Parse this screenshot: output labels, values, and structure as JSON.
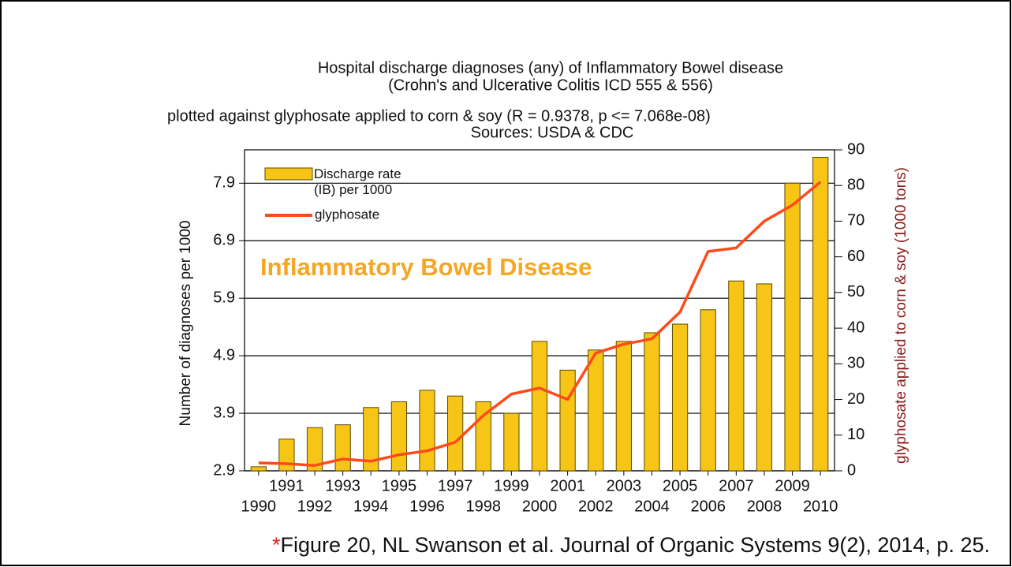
{
  "chart_data": {
    "type": "bar_line",
    "title": [
      "Hospital discharge diagnoses (any) of Inflammatory Bowel disease",
      "(Crohn's and Ulcerative Colitis  ICD 555 & 556)"
    ],
    "subtitle": [
      "plotted against glyphosate applied to corn & soy (R = 0.9378, p <= 7.068e-08)",
      "Sources: USDA & CDC"
    ],
    "ylabel": "Number of diagnoses per 1000",
    "y2label": "glyphosate applied to corn & soy (1000 tons)",
    "annotation": "Inflammatory Bowel Disease",
    "source_marker": "*",
    "source": "Figure 20, NL Swanson et al. Journal of Organic Systems 9(2), 2014, p. 25.",
    "categories": [
      "1990",
      "1991",
      "1992",
      "1993",
      "1994",
      "1995",
      "1996",
      "1997",
      "1998",
      "1999",
      "2000",
      "2001",
      "2002",
      "2003",
      "2004",
      "2005",
      "2006",
      "2007",
      "2008",
      "2009",
      "2010"
    ],
    "series": [
      {
        "name": "Discharge rate (IB) per 1000",
        "color": "#f7c516",
        "type": "bar",
        "values": [
          2.97,
          3.45,
          3.65,
          3.7,
          4.0,
          4.1,
          4.3,
          4.2,
          4.1,
          3.9,
          5.15,
          4.65,
          5.0,
          5.15,
          5.3,
          5.45,
          5.7,
          6.2,
          6.15,
          7.9,
          8.35
        ]
      },
      {
        "name": "glyphosate",
        "color": "#ff4a1a",
        "type": "line",
        "axis": "y2",
        "values": [
          2.2,
          2.0,
          1.5,
          3.3,
          2.7,
          4.5,
          5.6,
          8.0,
          15.5,
          21.5,
          23.2,
          20.0,
          33.0,
          35.5,
          37.0,
          44.5,
          61.5,
          62.5,
          70.0,
          74.5,
          81.0
        ]
      }
    ],
    "ylim": [
      2.9,
      8.48
    ],
    "yticks": [
      2.9,
      3.9,
      4.9,
      5.9,
      6.9,
      7.9
    ],
    "y2lim": [
      0,
      90
    ],
    "y2ticks": [
      0,
      10,
      20,
      30,
      40,
      50,
      60,
      70,
      80,
      90
    ],
    "grid": true
  }
}
